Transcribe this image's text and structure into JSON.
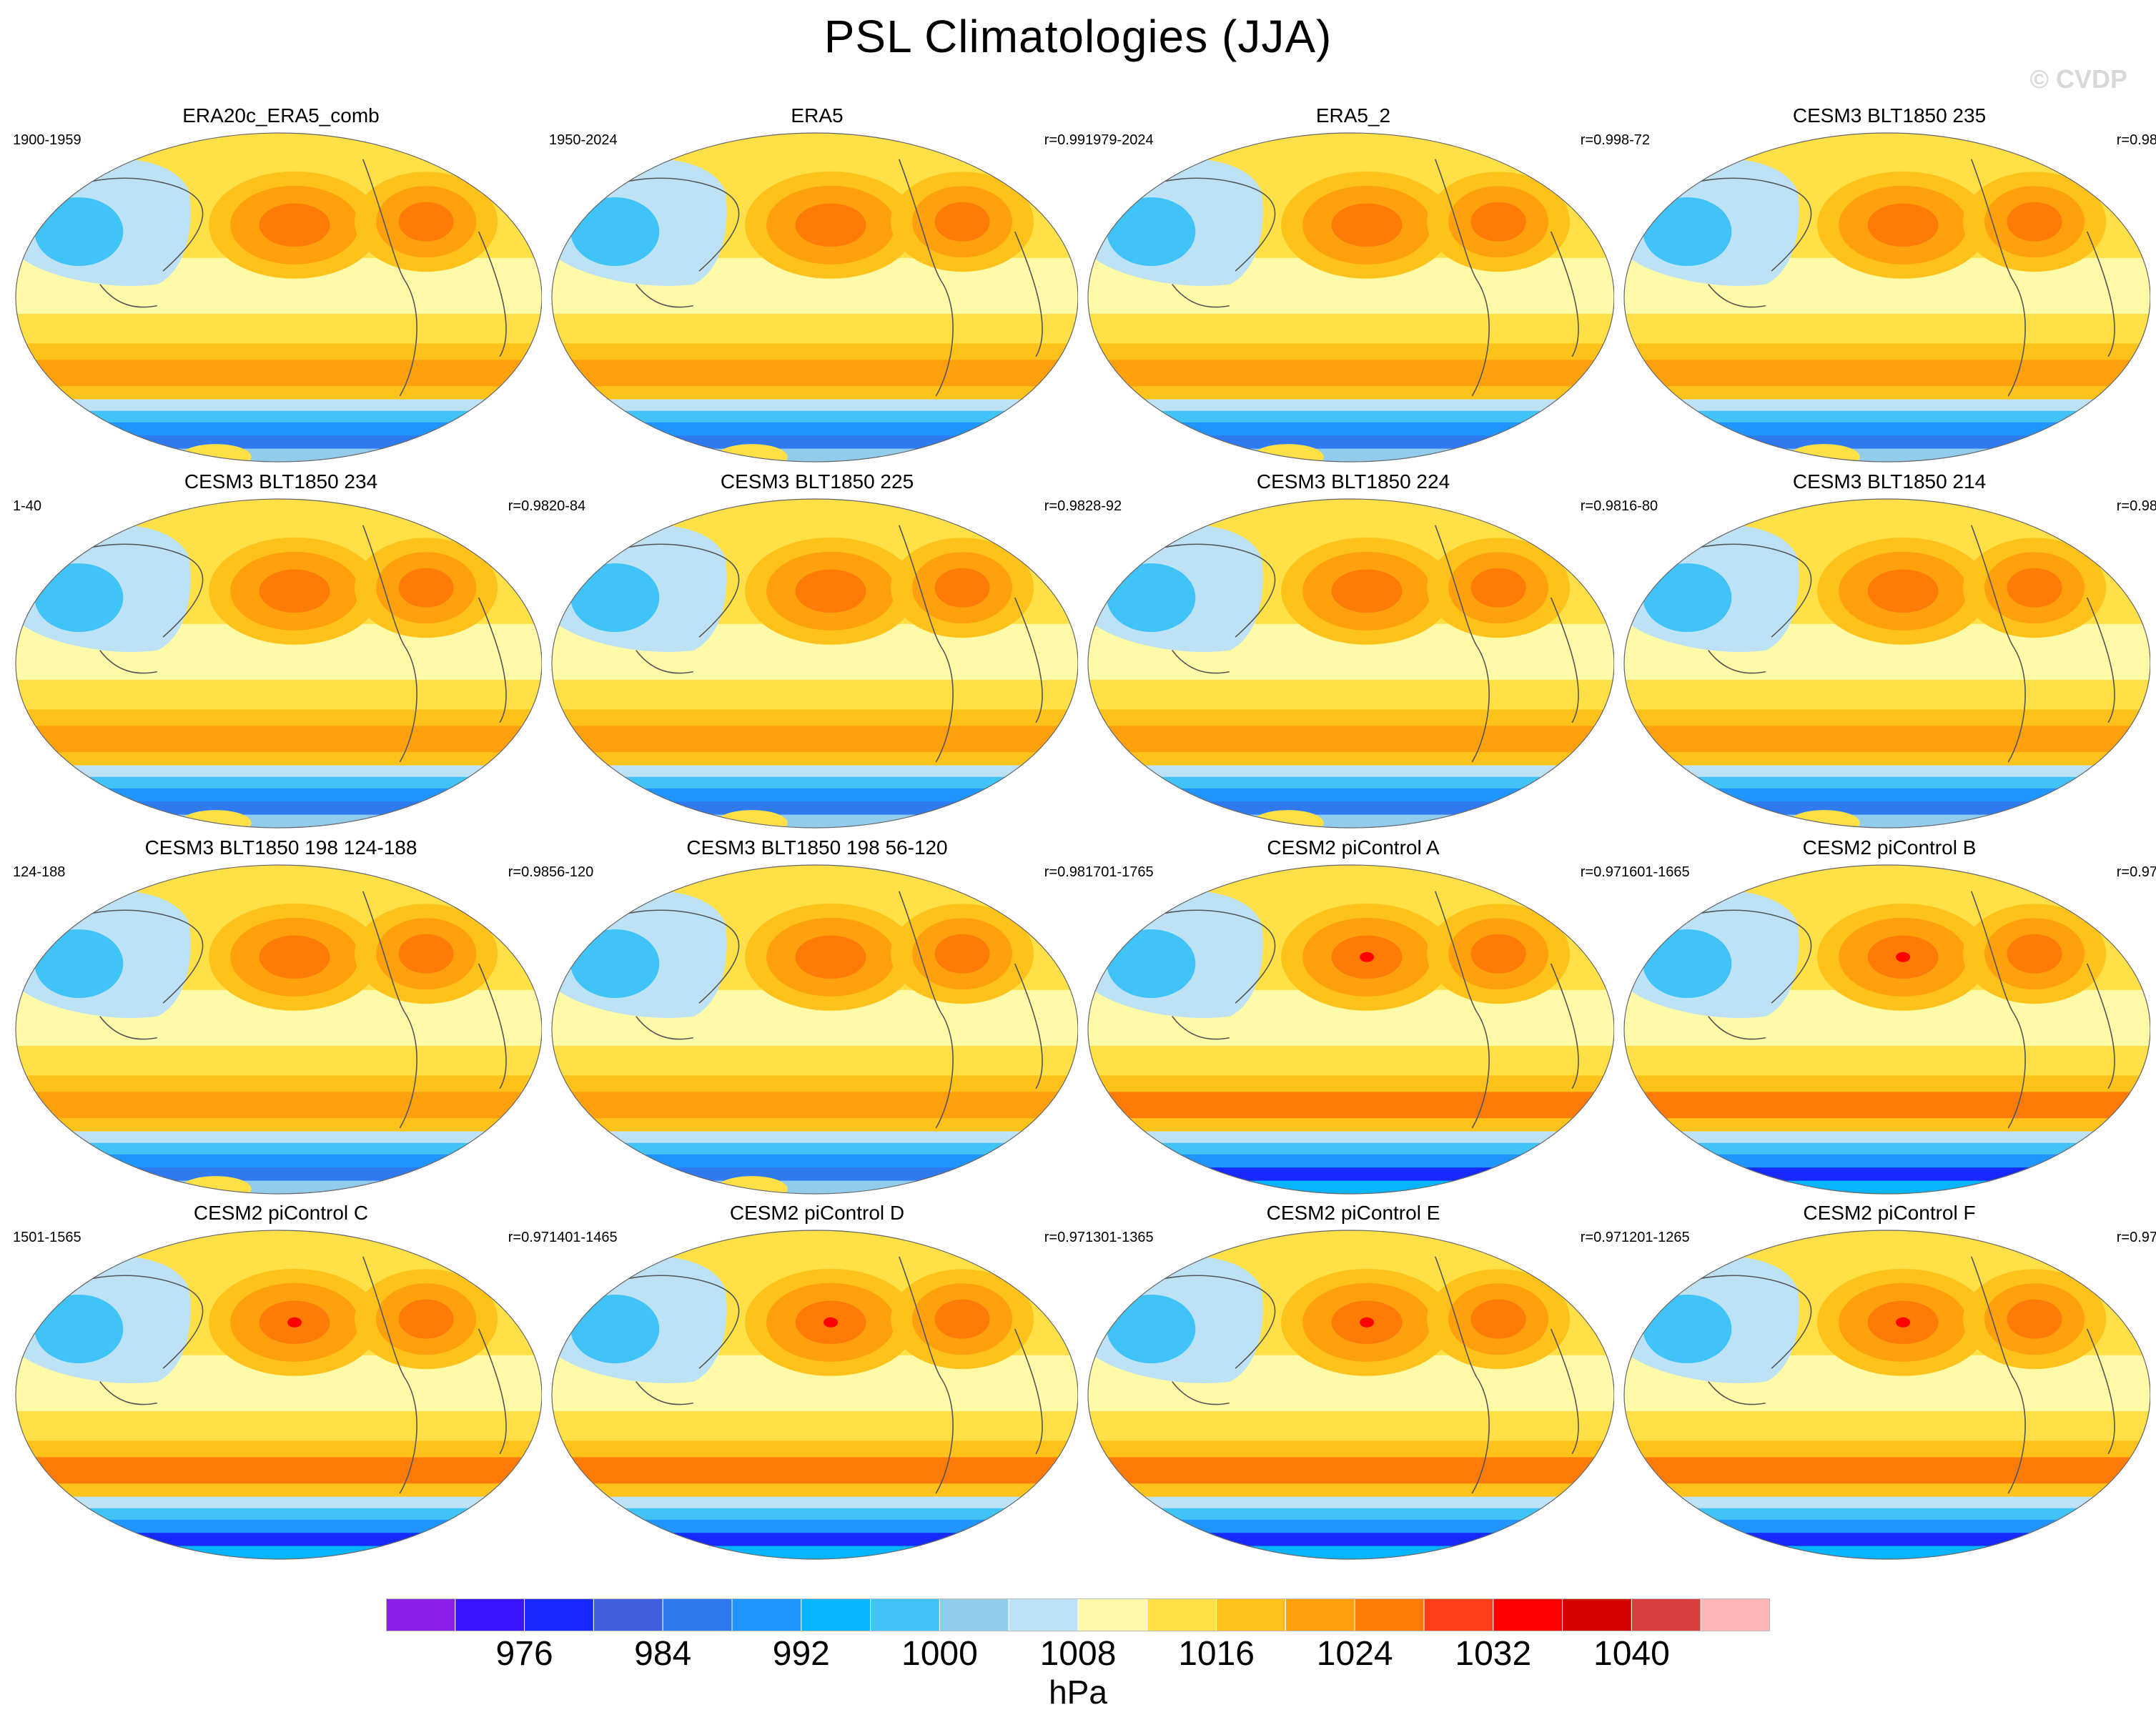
{
  "title": "PSL Climatologies (JJA)",
  "watermark": "© CVDP",
  "chart_data": {
    "type": "contour-map-grid",
    "variable": "PSL",
    "season": "JJA",
    "units": "hPa",
    "colorbar": {
      "colors": [
        "#8a1fe8",
        "#3b14ff",
        "#1629ff",
        "#3d5fe0",
        "#2f7af0",
        "#1e95ff",
        "#06b5ff",
        "#40c4f8",
        "#92ccec",
        "#bde2f6",
        "#fffaa8",
        "#ffe046",
        "#ffc21a",
        "#ffa00c",
        "#ff7b08",
        "#ff3e16",
        "#ff0000",
        "#d40000",
        "#d84040",
        "#ffb6b6"
      ],
      "tick_labels": [
        "976",
        "984",
        "992",
        "1000",
        "1008",
        "1016",
        "1024",
        "1032",
        "1040"
      ]
    },
    "panels": [
      {
        "title": "ERA20c_ERA5_comb",
        "period": "1900-1959",
        "corr": ""
      },
      {
        "title": "ERA5",
        "period": "1950-2024",
        "corr": "r=0.99"
      },
      {
        "title": "ERA5_2",
        "period": "1979-2024",
        "corr": "r=0.99"
      },
      {
        "title": "CESM3 BLT1850 235",
        "period": "8-72",
        "corr": "r=0.98"
      },
      {
        "title": "CESM3 BLT1850 234",
        "period": "1-40",
        "corr": "r=0.98"
      },
      {
        "title": "CESM3 BLT1850 225",
        "period": "20-84",
        "corr": "r=0.98"
      },
      {
        "title": "CESM3 BLT1850 224",
        "period": "28-92",
        "corr": "r=0.98"
      },
      {
        "title": "CESM3 BLT1850 214",
        "period": "16-80",
        "corr": "r=0.98"
      },
      {
        "title": "CESM3 BLT1850 198 124-188",
        "period": "124-188",
        "corr": "r=0.98"
      },
      {
        "title": "CESM3 BLT1850 198 56-120",
        "period": "56-120",
        "corr": "r=0.98"
      },
      {
        "title": "CESM2 piControl A",
        "period": "1701-1765",
        "corr": "r=0.97"
      },
      {
        "title": "CESM2 piControl B",
        "period": "1601-1665",
        "corr": "r=0.97"
      },
      {
        "title": "CESM2 piControl C",
        "period": "1501-1565",
        "corr": "r=0.97"
      },
      {
        "title": "CESM2 piControl D",
        "period": "1401-1465",
        "corr": "r=0.97"
      },
      {
        "title": "CESM2 piControl E",
        "period": "1301-1365",
        "corr": "r=0.97"
      },
      {
        "title": "CESM2 piControl F",
        "period": "1201-1265",
        "corr": "r=0.97"
      }
    ]
  }
}
